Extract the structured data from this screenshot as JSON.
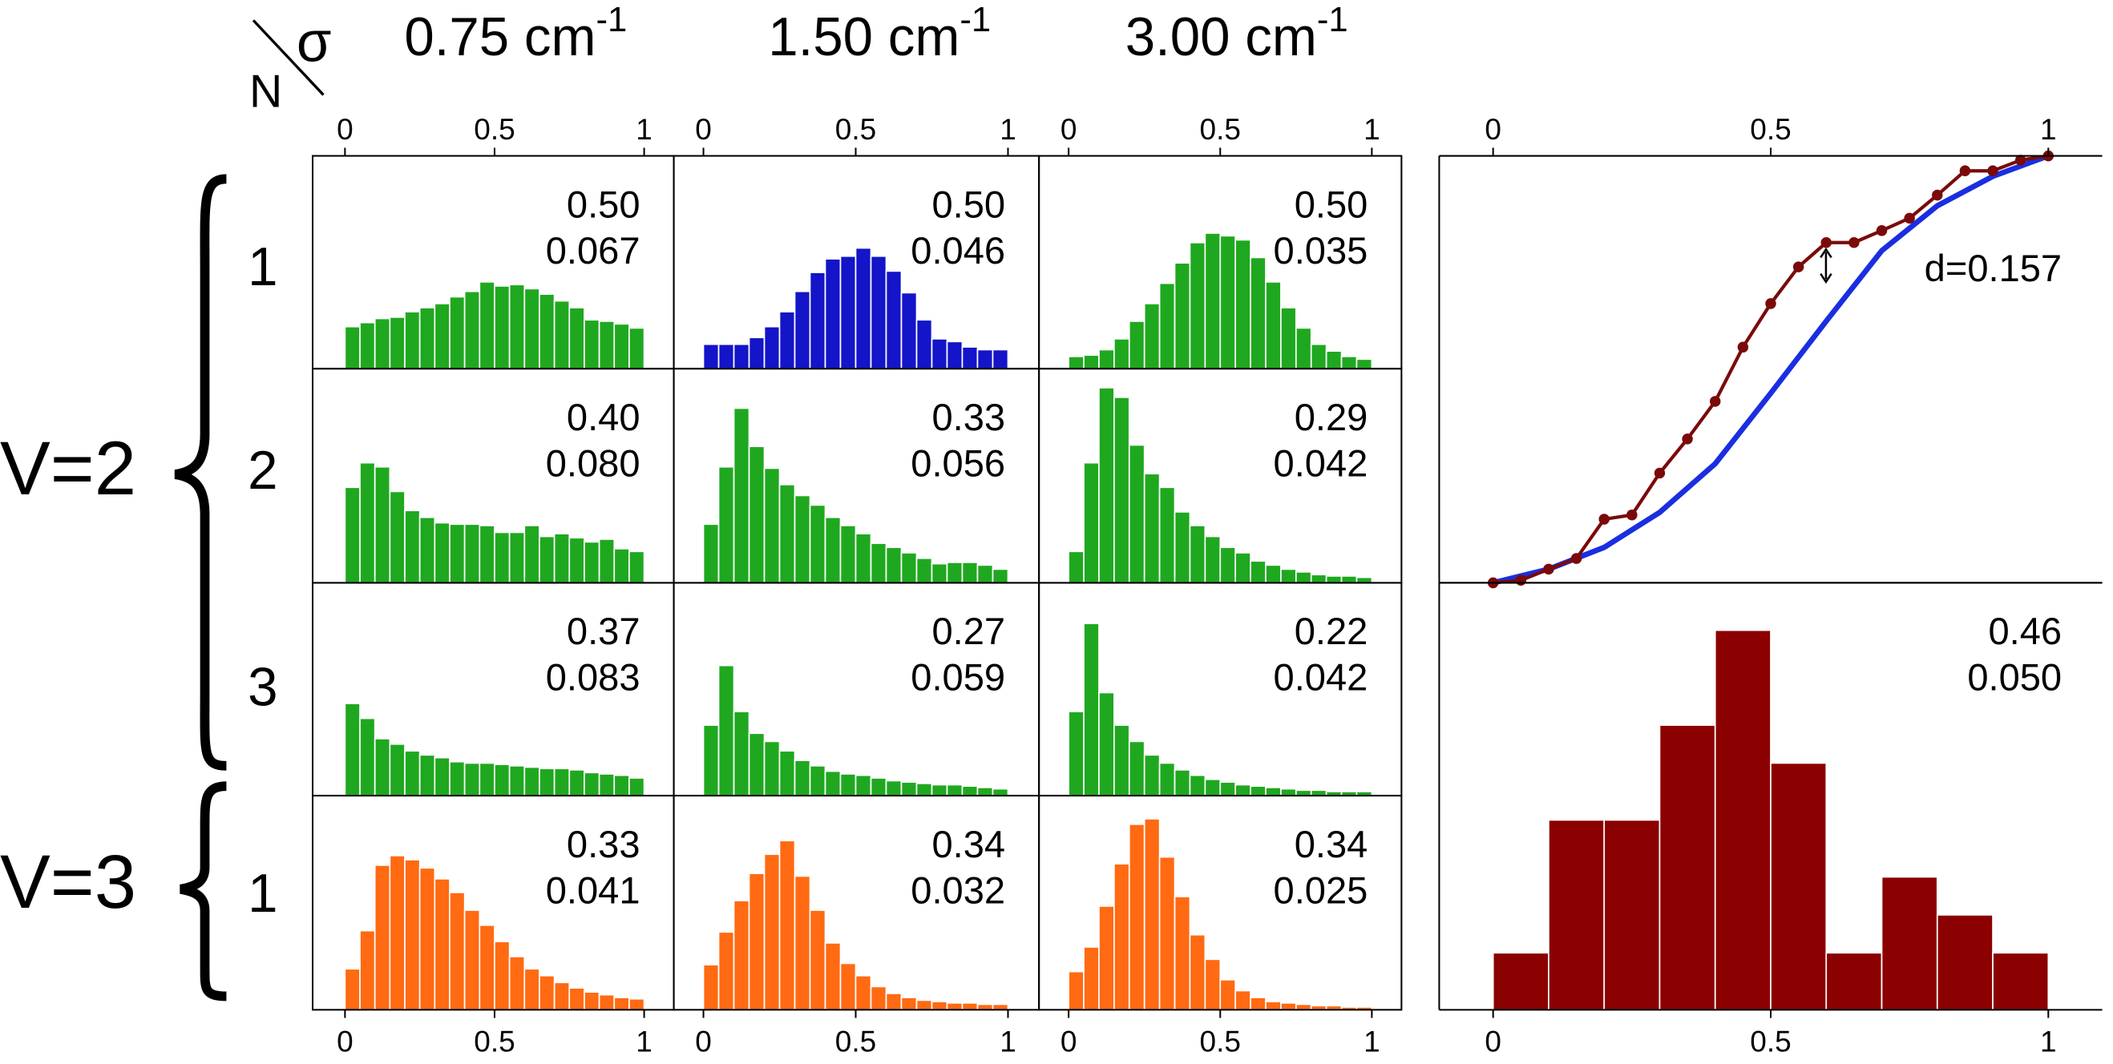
{
  "labels": {
    "corner": [
      "N",
      "σ"
    ],
    "columns": [
      {
        "text": "0.75 cm",
        "sup": "-1"
      },
      {
        "text": "1.50 cm",
        "sup": "-1"
      },
      {
        "text": "3.00 cm",
        "sup": "-1"
      }
    ],
    "rows": [
      "1",
      "2",
      "3",
      "1"
    ],
    "groups": [
      "V=2",
      "V=3"
    ]
  },
  "chart_data": [
    {
      "type": "histogram",
      "color": "#1fa81f",
      "bins": [
        0,
        0.05,
        0.1,
        0.15,
        0.2,
        0.25,
        0.3,
        0.35,
        0.4,
        0.45,
        0.5,
        0.55,
        0.6,
        0.65,
        0.7,
        0.75,
        0.8,
        0.85,
        0.9,
        0.95,
        1
      ],
      "values": [
        31,
        34,
        37,
        38,
        42,
        45,
        48,
        53,
        57,
        64,
        61,
        62,
        59,
        55,
        50,
        45,
        36,
        35,
        33,
        30
      ],
      "xlim": [
        0,
        1
      ],
      "ylim": [
        0,
        157
      ],
      "xticks": [
        0,
        0.5,
        1
      ],
      "annotations": [
        "0.50",
        "0.067"
      ]
    },
    {
      "type": "histogram",
      "color": "#1414c8",
      "bins": [
        0,
        0.05,
        0.1,
        0.15,
        0.2,
        0.25,
        0.3,
        0.35,
        0.4,
        0.45,
        0.5,
        0.55,
        0.6,
        0.65,
        0.7,
        0.75,
        0.8,
        0.85,
        0.9,
        0.95,
        1
      ],
      "values": [
        18,
        18,
        18,
        23,
        31,
        42,
        57,
        71,
        81,
        83,
        89,
        83,
        72,
        56,
        36,
        22,
        20,
        16,
        14,
        14
      ],
      "xlim": [
        0,
        1
      ],
      "ylim": [
        0,
        157
      ],
      "xticks": [
        0,
        0.5,
        1
      ],
      "annotations": [
        "0.50",
        "0.046"
      ]
    },
    {
      "type": "histogram",
      "color": "#1fa81f",
      "bins": [
        0,
        0.05,
        0.1,
        0.15,
        0.2,
        0.25,
        0.3,
        0.35,
        0.4,
        0.45,
        0.5,
        0.55,
        0.6,
        0.65,
        0.7,
        0.75,
        0.8,
        0.85,
        0.9,
        0.95,
        1
      ],
      "values": [
        9,
        10,
        14,
        22,
        35,
        48,
        63,
        78,
        93,
        100,
        98,
        95,
        82,
        64,
        45,
        30,
        18,
        13,
        9,
        7
      ],
      "xlim": [
        0,
        1
      ],
      "ylim": [
        0,
        157
      ],
      "xticks": [
        0,
        0.5,
        1
      ],
      "annotations": [
        "0.50",
        "0.035"
      ]
    },
    {
      "type": "histogram",
      "color": "#1fa81f",
      "bins": [
        0,
        0.05,
        0.1,
        0.15,
        0.2,
        0.25,
        0.3,
        0.35,
        0.4,
        0.45,
        0.5,
        0.55,
        0.6,
        0.65,
        0.7,
        0.75,
        0.8,
        0.85,
        0.9,
        0.95,
        1
      ],
      "values": [
        70,
        88,
        85,
        67,
        53,
        48,
        44,
        43,
        43,
        42,
        37,
        37,
        42,
        34,
        36,
        33,
        30,
        32,
        25,
        23
      ],
      "xlim": [
        0,
        1
      ],
      "ylim": [
        0,
        157
      ],
      "annotations": [
        "0.40",
        "0.080"
      ]
    },
    {
      "type": "histogram",
      "color": "#1fa81f",
      "bins": [
        0,
        0.05,
        0.1,
        0.15,
        0.2,
        0.25,
        0.3,
        0.35,
        0.4,
        0.45,
        0.5,
        0.55,
        0.6,
        0.65,
        0.7,
        0.75,
        0.8,
        0.85,
        0.9,
        0.95,
        1
      ],
      "values": [
        43,
        85,
        128,
        100,
        84,
        72,
        64,
        57,
        48,
        42,
        36,
        29,
        26,
        22,
        18,
        14,
        15,
        15,
        13,
        10
      ],
      "xlim": [
        0,
        1
      ],
      "ylim": [
        0,
        157
      ],
      "annotations": [
        "0.33",
        "0.056"
      ]
    },
    {
      "type": "histogram",
      "color": "#1fa81f",
      "bins": [
        0,
        0.05,
        0.1,
        0.15,
        0.2,
        0.25,
        0.3,
        0.35,
        0.4,
        0.45,
        0.5,
        0.55,
        0.6,
        0.65,
        0.7,
        0.75,
        0.8,
        0.85,
        0.9,
        0.95,
        1
      ],
      "values": [
        23,
        88,
        143,
        136,
        101,
        80,
        70,
        52,
        42,
        34,
        26,
        22,
        16,
        13,
        10,
        8,
        6,
        5,
        5,
        4
      ],
      "xlim": [
        0,
        1
      ],
      "ylim": [
        0,
        157
      ],
      "annotations": [
        "0.29",
        "0.042"
      ]
    },
    {
      "type": "histogram",
      "color": "#1fa81f",
      "bins": [
        0,
        0.05,
        0.1,
        0.15,
        0.2,
        0.25,
        0.3,
        0.35,
        0.4,
        0.45,
        0.5,
        0.55,
        0.6,
        0.65,
        0.7,
        0.75,
        0.8,
        0.85,
        0.9,
        0.95,
        1
      ],
      "values": [
        68,
        57,
        42,
        38,
        33,
        30,
        28,
        25,
        24,
        24,
        23,
        22,
        21,
        20,
        20,
        19,
        17,
        16,
        15,
        13
      ],
      "xlim": [
        0,
        1
      ],
      "ylim": [
        0,
        157
      ],
      "annotations": [
        "0.37",
        "0.083"
      ]
    },
    {
      "type": "histogram",
      "color": "#1fa81f",
      "bins": [
        0,
        0.05,
        0.1,
        0.15,
        0.2,
        0.25,
        0.3,
        0.35,
        0.4,
        0.45,
        0.5,
        0.55,
        0.6,
        0.65,
        0.7,
        0.75,
        0.8,
        0.85,
        0.9,
        0.95,
        1
      ],
      "values": [
        52,
        96,
        62,
        46,
        40,
        33,
        26,
        22,
        18,
        16,
        15,
        13,
        11,
        10,
        9,
        8,
        8,
        7,
        6,
        5
      ],
      "xlim": [
        0,
        1
      ],
      "ylim": [
        0,
        157
      ],
      "annotations": [
        "0.27",
        "0.059"
      ]
    },
    {
      "type": "histogram",
      "color": "#1fa81f",
      "bins": [
        0,
        0.05,
        0.1,
        0.15,
        0.2,
        0.25,
        0.3,
        0.35,
        0.4,
        0.45,
        0.5,
        0.55,
        0.6,
        0.65,
        0.7,
        0.75,
        0.8,
        0.85,
        0.9,
        0.95,
        1
      ],
      "values": [
        62,
        127,
        76,
        52,
        40,
        30,
        24,
        19,
        15,
        12,
        10,
        8,
        7,
        6,
        5,
        4,
        4,
        3,
        3,
        3
      ],
      "xlim": [
        0,
        1
      ],
      "ylim": [
        0,
        157
      ],
      "annotations": [
        "0.22",
        "0.042"
      ]
    },
    {
      "type": "histogram",
      "color": "#ff6a12",
      "bins": [
        0,
        0.05,
        0.1,
        0.15,
        0.2,
        0.25,
        0.3,
        0.35,
        0.4,
        0.45,
        0.5,
        0.55,
        0.6,
        0.65,
        0.7,
        0.75,
        0.8,
        0.85,
        0.9,
        0.95,
        1
      ],
      "values": [
        30,
        58,
        106,
        113,
        110,
        104,
        96,
        86,
        73,
        62,
        50,
        39,
        30,
        25,
        20,
        16,
        13,
        11,
        9,
        8
      ],
      "xlim": [
        0,
        1
      ],
      "ylim": [
        0,
        157
      ],
      "xticks": [
        0,
        0.5,
        1
      ],
      "annotations": [
        "0.33",
        "0.041"
      ]
    },
    {
      "type": "histogram",
      "color": "#ff6a12",
      "bins": [
        0,
        0.05,
        0.1,
        0.15,
        0.2,
        0.25,
        0.3,
        0.35,
        0.4,
        0.45,
        0.5,
        0.55,
        0.6,
        0.65,
        0.7,
        0.75,
        0.8,
        0.85,
        0.9,
        0.95,
        1
      ],
      "values": [
        33,
        57,
        80,
        100,
        114,
        124,
        98,
        73,
        49,
        34,
        25,
        17,
        12,
        9,
        7,
        6,
        5,
        5,
        4,
        4
      ],
      "xlim": [
        0,
        1
      ],
      "ylim": [
        0,
        157
      ],
      "xticks": [
        0,
        0.5,
        1
      ],
      "annotations": [
        "0.34",
        "0.032"
      ]
    },
    {
      "type": "histogram",
      "color": "#ff6a12",
      "bins": [
        0,
        0.05,
        0.1,
        0.15,
        0.2,
        0.25,
        0.3,
        0.35,
        0.4,
        0.45,
        0.5,
        0.55,
        0.6,
        0.65,
        0.7,
        0.75,
        0.8,
        0.85,
        0.9,
        0.95,
        1
      ],
      "values": [
        28,
        46,
        76,
        107,
        136,
        140,
        112,
        83,
        55,
        37,
        22,
        14,
        9,
        6,
        5,
        4,
        3,
        3,
        2,
        2
      ],
      "xlim": [
        0,
        1
      ],
      "ylim": [
        0,
        157
      ],
      "xticks": [
        0,
        0.5,
        1
      ],
      "annotations": [
        "0.34",
        "0.025"
      ]
    },
    {
      "type": "line",
      "xlim": [
        0,
        1
      ],
      "ylim": [
        0,
        1
      ],
      "xticks": [
        0,
        0.5,
        1
      ],
      "annotations": [
        "d=0.157"
      ],
      "series": [
        {
          "color": "#1a2ee0",
          "x": [
            0,
            0.1,
            0.2,
            0.3,
            0.4,
            0.5,
            0.6,
            0.7,
            0.8,
            0.9,
            1
          ],
          "values": [
            0,
            0.032,
            0.083,
            0.165,
            0.279,
            0.444,
            0.613,
            0.778,
            0.883,
            0.952,
            1
          ]
        },
        {
          "color": "#7a0a0a",
          "markers": true,
          "x": [
            0,
            0.05,
            0.1,
            0.15,
            0.2,
            0.25,
            0.3,
            0.35,
            0.4,
            0.45,
            0.5,
            0.55,
            0.6,
            0.65,
            0.7,
            0.75,
            0.8,
            0.85,
            0.9,
            0.95,
            1
          ],
          "values": [
            0,
            0.006,
            0.032,
            0.057,
            0.149,
            0.159,
            0.257,
            0.337,
            0.425,
            0.552,
            0.654,
            0.74,
            0.797,
            0.797,
            0.825,
            0.854,
            0.908,
            0.965,
            0.965,
            0.99,
            1
          ]
        }
      ]
    },
    {
      "type": "histogram",
      "color": "#8b0000",
      "bins": [
        0,
        0.1,
        0.2,
        0.3,
        0.4,
        0.5,
        0.6,
        0.7,
        0.8,
        0.9,
        1
      ],
      "values": [
        3,
        10,
        10,
        15,
        20,
        13,
        3,
        7,
        5,
        3
      ],
      "xlim": [
        0,
        1
      ],
      "ylim": [
        0,
        22.5
      ],
      "xticks": [
        0,
        0.5,
        1
      ],
      "annotations": [
        "0.46",
        "0.050"
      ]
    }
  ]
}
